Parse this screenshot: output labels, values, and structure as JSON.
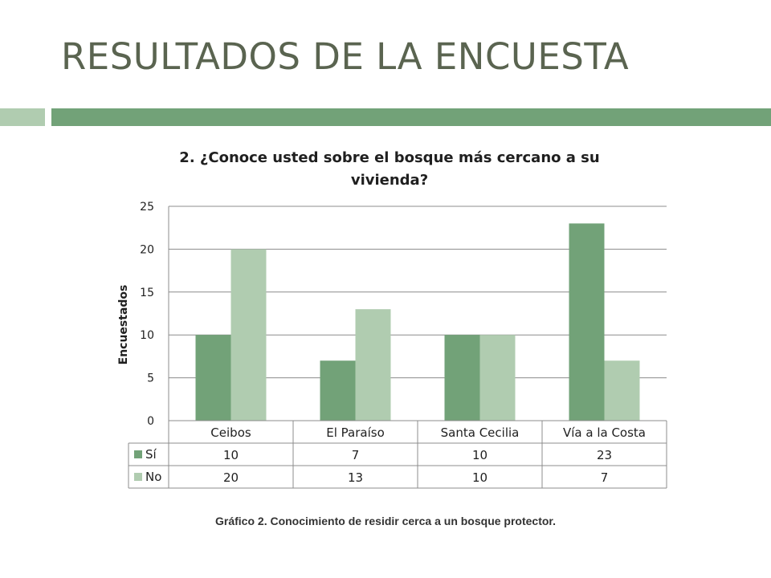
{
  "slide": {
    "title": "RESULTADOS DE LA ENCUESTA",
    "caption": "Gráfico 2. Conocimiento de residir cerca a un bosque protector."
  },
  "colors": {
    "title": "#5a6450",
    "accent_dark": "#72a278",
    "accent_light": "#b0ccb0"
  },
  "chart_data": {
    "type": "bar",
    "title_lines": [
      "2. ¿Conoce usted sobre el bosque más cercano a su",
      "vivienda?"
    ],
    "ylabel": "Encuestados",
    "xlabel": "",
    "categories": [
      "Ceibos",
      "El Paraíso",
      "Santa Cecilia",
      "Vía a la Costa"
    ],
    "series": [
      {
        "name": "Sí",
        "values": [
          10,
          7,
          10,
          23
        ],
        "color": "#72a278"
      },
      {
        "name": "No",
        "values": [
          20,
          13,
          10,
          7
        ],
        "color": "#b0ccb0"
      }
    ],
    "ylim": [
      0,
      25
    ],
    "yticks": [
      0,
      5,
      10,
      15,
      20,
      25
    ],
    "grid": true,
    "legend": "data-table"
  }
}
